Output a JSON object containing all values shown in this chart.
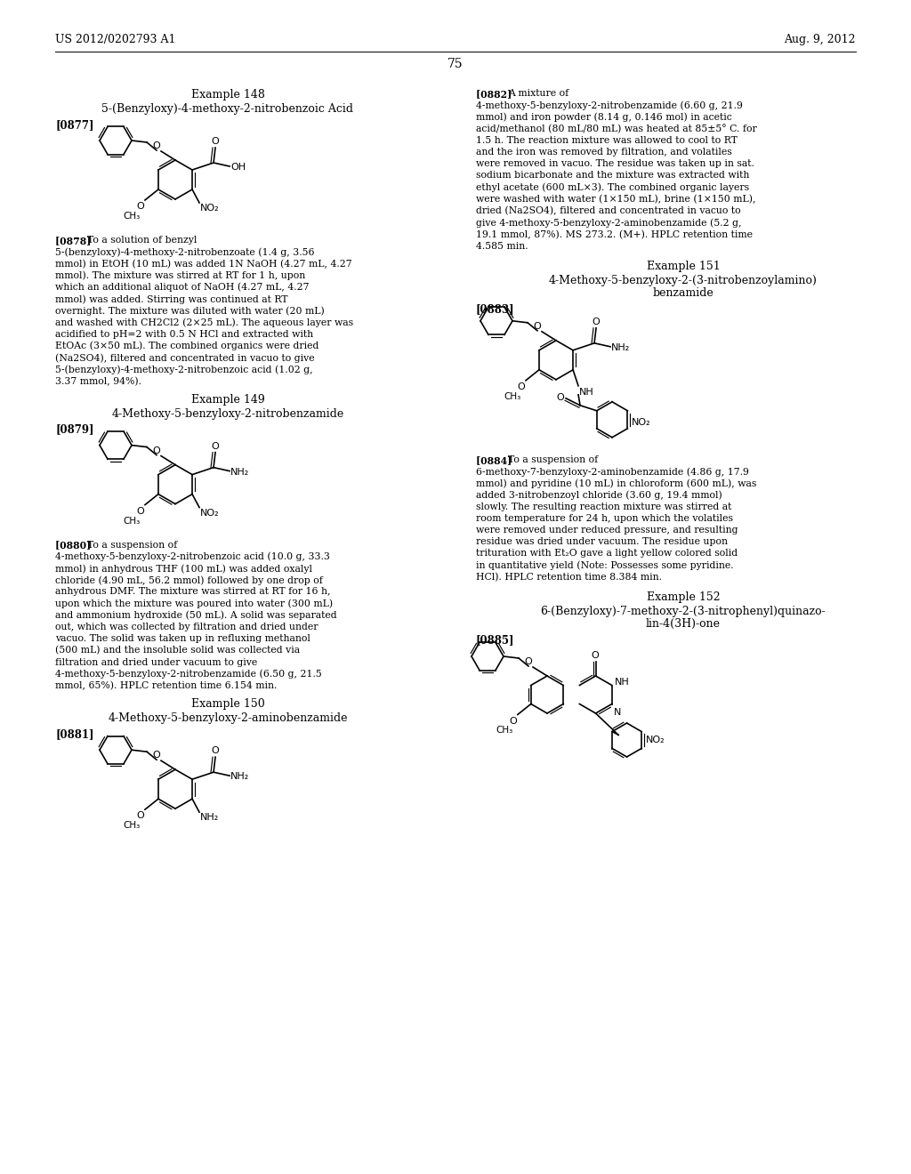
{
  "bg": "#ffffff",
  "header_left": "US 2012/0202793 A1",
  "header_right": "Aug. 9, 2012",
  "page_num": "75",
  "ex148_title": "Example 148",
  "ex148_sub": "5-(Benzyloxy)-4-methoxy-2-nitrobenzoic Acid",
  "ex148_tag": "[0877]",
  "ex149_title": "Example 149",
  "ex149_sub": "4-Methoxy-5-benzyloxy-2-nitrobenzamide",
  "ex149_tag": "[0879]",
  "ex150_title": "Example 150",
  "ex150_sub": "4-Methoxy-5-benzyloxy-2-aminobenzamide",
  "ex150_tag": "[0881]",
  "ex151_title": "Example 151",
  "ex151_sub1": "4-Methoxy-5-benzyloxy-2-(3-nitrobenzoylamino)",
  "ex151_sub2": "benzamide",
  "ex151_tag": "[0883]",
  "ex152_title": "Example 152",
  "ex152_sub1": "6-(Benzyloxy)-7-methoxy-2-(3-nitrophenyl)quinazo-",
  "ex152_sub2": "lin-4(3H)-one",
  "ex152_tag": "[0885]",
  "para882_tag": "[0882]",
  "para882": "A mixture of 4-methoxy-5-benzyloxy-2-nitrobenzamide (6.60 g, 21.9 mmol) and iron powder (8.14 g, 0.146 mol) in acetic acid/methanol (80 mL/80 mL) was heated at 85±5° C. for 1.5 h. The reaction mixture was allowed to cool to RT and the iron was removed by filtration, and volatiles were removed in vacuo. The residue was taken up in sat. sodium bicarbonate and the mixture was extracted with ethyl acetate (600 mL×3). The combined organic layers were washed with water (1×150 mL), brine (1×150 mL), dried (Na2SO4), filtered and concentrated in vacuo to give 4-meth-oxy-5-benzyloxy-2-aminobenzamide (5.2 g, 19.1 mmol, 87%). MS 273.2. (M+). HPLC retention time 4.585 min.",
  "para878_tag": "[0878]",
  "para878": "To a solution of benzyl 5-(benzyloxy)-4-methoxy-2-nitrobenzoate (1.4 g, 3.56 mmol) in EtOH (10 mL) was added 1N NaOH (4.27 mL, 4.27 mmol). The mixture was stirred at RT for 1 h, upon which an additional aliquot of NaOH (4.27 mL, 4.27 mmol) was added. Stirring was continued at RT overnight. The mixture was diluted with water (20 mL) and washed with CH2Cl2 (2×25 mL). The aqueous layer was acidified to pH=2 with 0.5 N HCl and extracted with EtOAc (3×50 mL). The combined organics were dried (Na2SO4), filtered and concentrated in vacuo to give 5-(ben-zyloxy)-4-methoxy-2-nitrobenzoic acid (1.02 g, 3.37 mmol, 94%).",
  "para880_tag": "[0880]",
  "para880": "To a suspension of 4-methoxy-5-benzyloxy-2-ni-trobenzoic acid (10.0 g, 33.3 mmol) in anhydrous THF (100 mL) was added oxalyl chloride (4.90 mL, 56.2 mmol) fol-lowed by one drop of anhydrous DMF. The mixture was stirred at RT for 16 h, upon which the mixture was poured into water (300 mL) and ammonium hydroxide (50 mL). A solid was separated out, which was collected by filtration and dried under vacuo. The solid was taken up in refluxing methanol (500 mL) and the insoluble solid was collected via filtration and dried under vacuum to give 4-methoxy-5-benzyloxy-2-nitrobenzamide (6.50 g, 21.5 mmol, 65%). HPLC retention time 6.154 min.",
  "para884_tag": "[0884]",
  "para884": "To a suspension of 6-methoxy-7-benzyloxy-2-ami-nobenzamide (4.86 g, 17.9 mmol) and pyridine (10 mL) in chloroform (600 mL), was added 3-nitrobenzoyl chloride (3.60 g, 19.4 mmol) slowly. The resulting reaction mixture was stirred at room temperature for 24 h, upon which the volatiles were removed under reduced pressure, and resulting residue was dried under vacuum. The residue upon trituration with Et₂O gave a light yellow colored solid in quantitative yield (Note: Possesses some pyridine. HCl). HPLC retention time 8.384 min."
}
